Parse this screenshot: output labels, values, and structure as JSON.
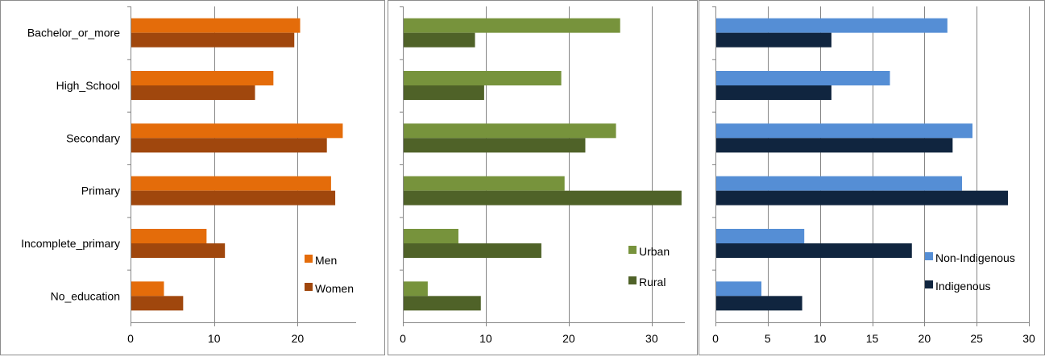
{
  "chart_data": [
    {
      "type": "bar",
      "orientation": "horizontal",
      "categories": [
        "Bachelor_or_more",
        "High_School",
        "Secondary",
        "Primary",
        "Incomplete_primary",
        "No_education"
      ],
      "series": [
        {
          "name": "Men",
          "color": "#E46C0A",
          "values": [
            20.3,
            17.1,
            25.4,
            24.0,
            9.1,
            4.0
          ]
        },
        {
          "name": "Women",
          "color": "#A0470D",
          "values": [
            19.6,
            14.9,
            23.5,
            24.5,
            11.3,
            6.3
          ]
        }
      ],
      "xlim": [
        0,
        27
      ],
      "xticks": [
        0,
        10,
        20
      ],
      "grid": true,
      "legend": "bottom-right"
    },
    {
      "type": "bar",
      "orientation": "horizontal",
      "categories": [
        "Bachelor_or_more",
        "High_School",
        "Secondary",
        "Primary",
        "Incomplete_primary",
        "No_education"
      ],
      "series": [
        {
          "name": "Urban",
          "color": "#77933C",
          "values": [
            26.2,
            19.1,
            25.7,
            19.5,
            6.7,
            3.0
          ]
        },
        {
          "name": "Rural",
          "color": "#4F6228",
          "values": [
            8.7,
            9.8,
            22.0,
            33.6,
            16.7,
            9.4
          ]
        }
      ],
      "xlim": [
        0,
        34
      ],
      "xticks": [
        0,
        10,
        20,
        30
      ],
      "grid": true,
      "legend": "bottom-right"
    },
    {
      "type": "bar",
      "orientation": "horizontal",
      "categories": [
        "Bachelor_or_more",
        "High_School",
        "Secondary",
        "Primary",
        "Incomplete_primary",
        "No_education"
      ],
      "series": [
        {
          "name": "Non-Indigenous",
          "color": "#558ED5",
          "values": [
            22.2,
            16.7,
            24.6,
            23.6,
            8.5,
            4.4
          ]
        },
        {
          "name": "Indigenous",
          "color": "#10253F",
          "values": [
            11.1,
            11.1,
            22.7,
            28.0,
            18.8,
            8.3
          ]
        }
      ],
      "xlim": [
        0,
        30
      ],
      "xticks": [
        0,
        5,
        10,
        15,
        20,
        25,
        30
      ],
      "grid": true,
      "legend": "bottom-right"
    }
  ]
}
